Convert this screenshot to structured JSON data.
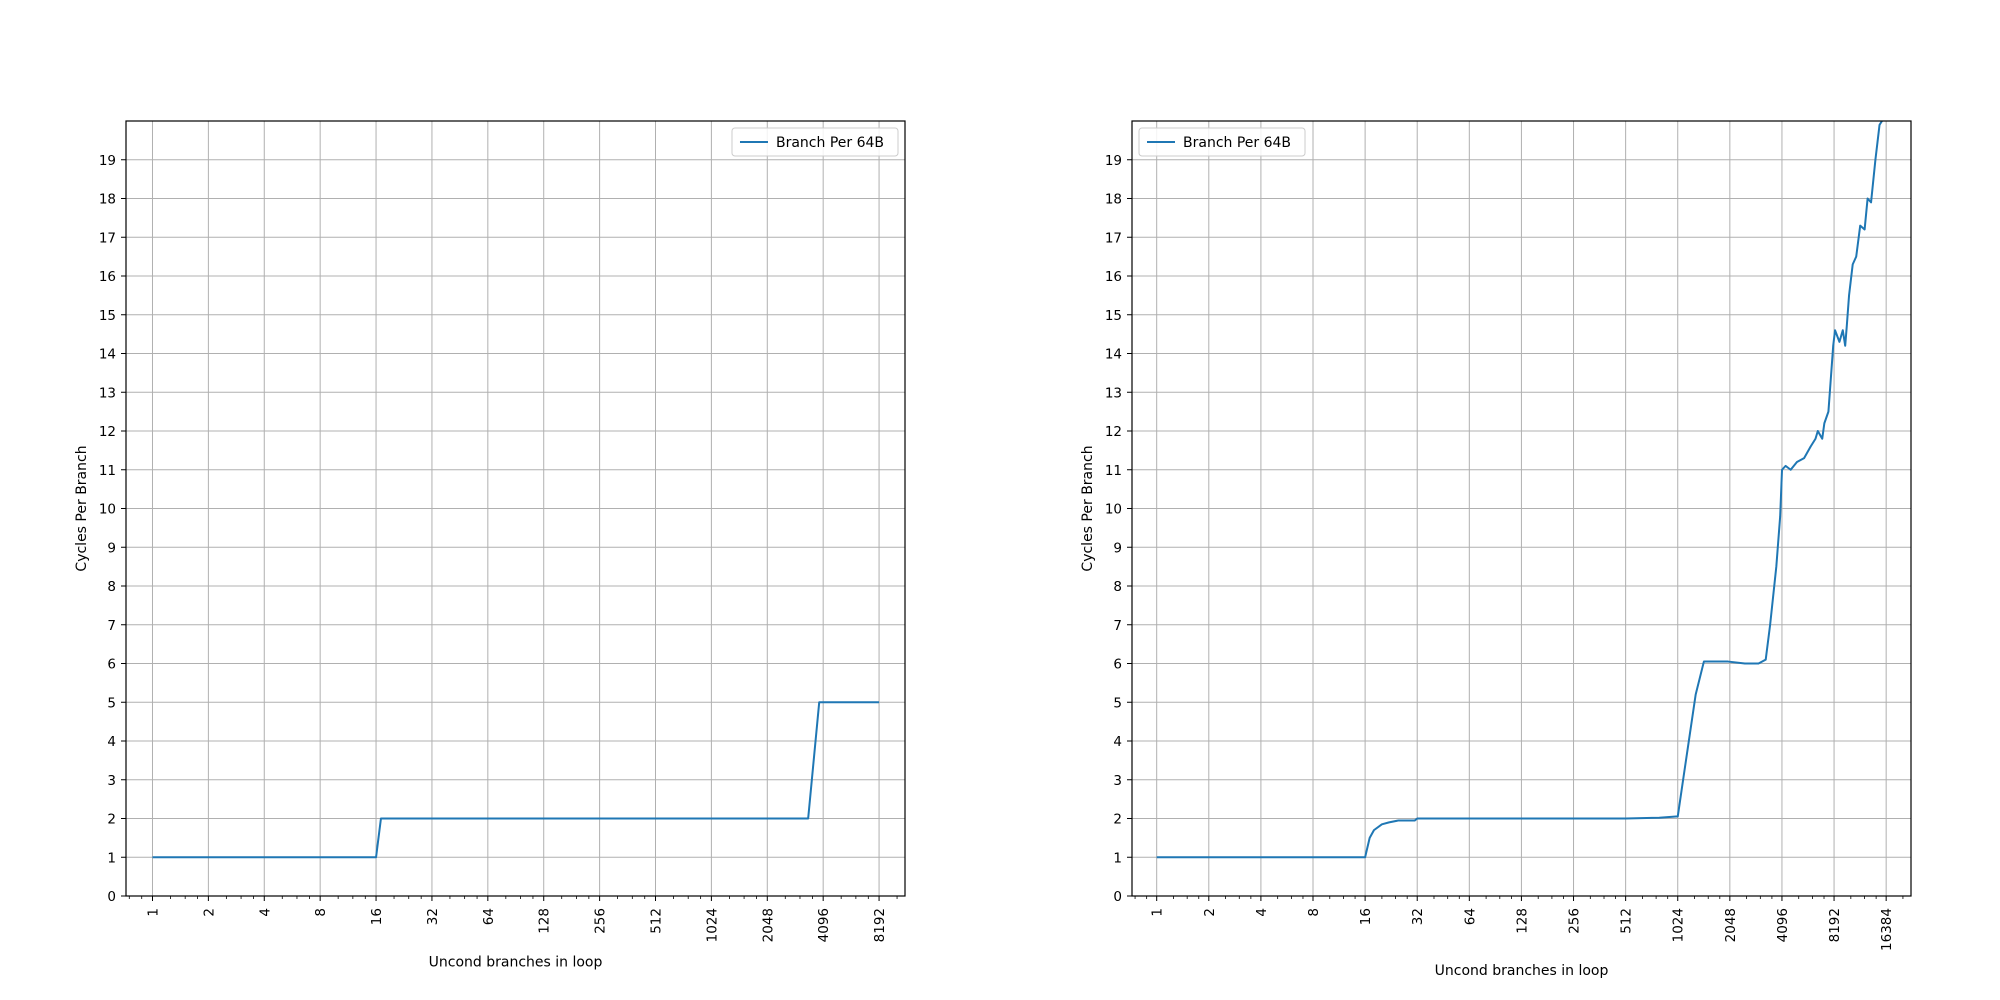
{
  "chart_data": [
    {
      "type": "line",
      "xscale": "log2",
      "xlim": [
        0.72,
        11300
      ],
      "ylim": [
        0,
        20
      ],
      "xlabel": "Uncond branches in loop",
      "ylabel": "Cycles Per Branch",
      "xtick_labels": [
        "1",
        "2",
        "4",
        "8",
        "16",
        "32",
        "64",
        "128",
        "256",
        "512",
        "1024",
        "2048",
        "4096",
        "8192"
      ],
      "ytick_labels": [
        "0",
        "1",
        "2",
        "3",
        "4",
        "5",
        "6",
        "7",
        "8",
        "9",
        "10",
        "11",
        "12",
        "13",
        "14",
        "15",
        "16",
        "17",
        "18",
        "19"
      ],
      "grid": true,
      "legend_position": "upper right",
      "series": [
        {
          "name": "Branch Per 64B",
          "color": "#1f77b4",
          "x": [
            1,
            16,
            17,
            3400,
            3900,
            8192
          ],
          "y": [
            1,
            1,
            2,
            2,
            5,
            5
          ]
        }
      ]
    },
    {
      "type": "line",
      "xscale": "log2",
      "xlim": [
        0.72,
        22800
      ],
      "ylim": [
        0,
        20
      ],
      "xlabel": "Uncond branches in loop",
      "ylabel": "Cycles Per Branch",
      "xtick_labels": [
        "1",
        "2",
        "4",
        "8",
        "16",
        "32",
        "64",
        "128",
        "256",
        "512",
        "1024",
        "2048",
        "4096",
        "8192",
        "16384"
      ],
      "ytick_labels": [
        "0",
        "1",
        "2",
        "3",
        "4",
        "5",
        "6",
        "7",
        "8",
        "9",
        "10",
        "11",
        "12",
        "13",
        "14",
        "15",
        "16",
        "17",
        "18",
        "19"
      ],
      "grid": true,
      "legend_position": "upper left",
      "series": [
        {
          "name": "Branch Per 64B",
          "color": "#1f77b4",
          "x": [
            1,
            16,
            17,
            18,
            20,
            22,
            25,
            28,
            31,
            32,
            64,
            128,
            256,
            512,
            800,
            1000,
            1024,
            1100,
            1300,
            1450,
            1500,
            1700,
            2000,
            2500,
            3000,
            3300,
            3500,
            3800,
            4000,
            4100,
            4300,
            4600,
            5000,
            5500,
            6000,
            6400,
            6600,
            7000,
            7200,
            7600,
            8100,
            8300,
            8800,
            9200,
            9500,
            9700,
            10000,
            10500,
            11000,
            11600,
            12300,
            12800,
            13400,
            14200,
            15000,
            15500,
            16384
          ],
          "y": [
            1,
            1,
            1.5,
            1.7,
            1.85,
            1.9,
            1.95,
            1.95,
            1.95,
            2,
            2,
            2,
            2,
            2,
            2.02,
            2.05,
            2.05,
            3,
            5.2,
            6.05,
            6.05,
            6.05,
            6.05,
            6,
            6,
            6.1,
            7,
            8.5,
            9.8,
            11,
            11.1,
            11,
            11.2,
            11.3,
            11.6,
            11.8,
            12,
            11.8,
            12.2,
            12.5,
            14.2,
            14.6,
            14.3,
            14.6,
            14.2,
            14.7,
            15.5,
            16.3,
            16.5,
            17.3,
            17.2,
            18,
            17.9,
            19,
            19.9,
            20,
            20.3
          ]
        }
      ]
    }
  ]
}
